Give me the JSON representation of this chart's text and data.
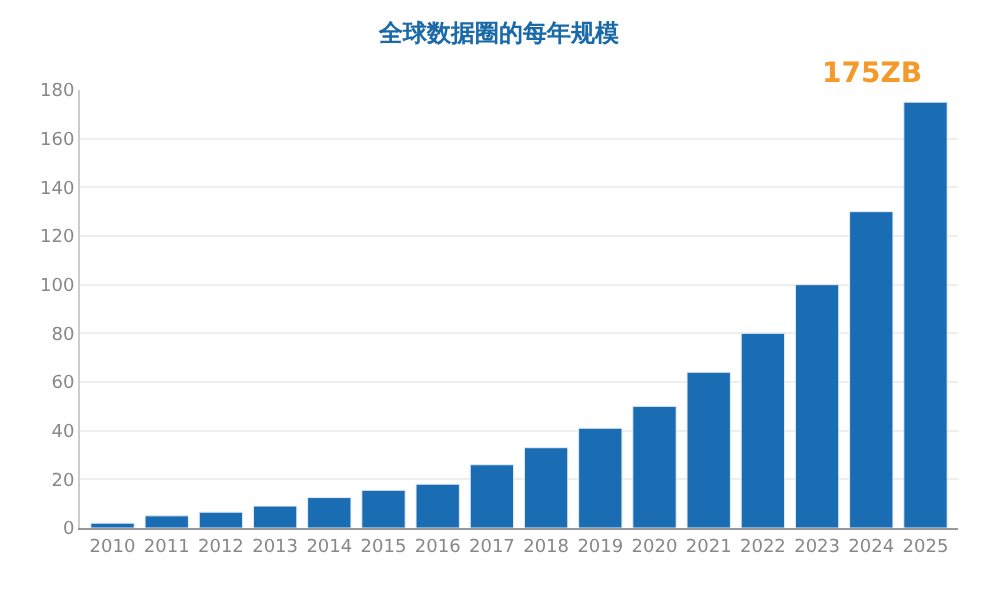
{
  "chart_data": {
    "type": "bar",
    "title": "全球数据圈的每年规模",
    "categories": [
      "2010",
      "2011",
      "2012",
      "2013",
      "2014",
      "2015",
      "2016",
      "2017",
      "2018",
      "2019",
      "2020",
      "2021",
      "2022",
      "2023",
      "2024",
      "2025"
    ],
    "values": [
      2,
      5,
      6.5,
      9,
      12.5,
      15.5,
      18,
      26,
      33,
      41,
      50,
      64,
      80,
      100,
      130,
      175
    ],
    "color": "#1a6db3",
    "ylim": [
      0,
      180
    ],
    "yticks": [
      0,
      20,
      40,
      60,
      80,
      100,
      120,
      140,
      160,
      180
    ],
    "grid": "y",
    "annotations": [
      {
        "text": "175ZB",
        "x": "2025",
        "y": 175
      }
    ]
  }
}
